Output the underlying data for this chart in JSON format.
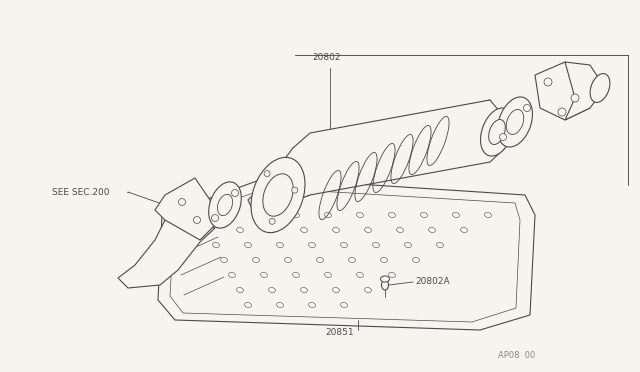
{
  "background_color": "#f5f4ee",
  "line_color": "#4a4a4a",
  "text_color": "#4a4a4a",
  "label_20802": "20802",
  "label_20802A": "20802A",
  "label_20851": "20851",
  "label_see_sec": "SEE SEC.200",
  "label_code": "AP08  00",
  "fig_width": 6.4,
  "fig_height": 3.72,
  "dpi": 100
}
